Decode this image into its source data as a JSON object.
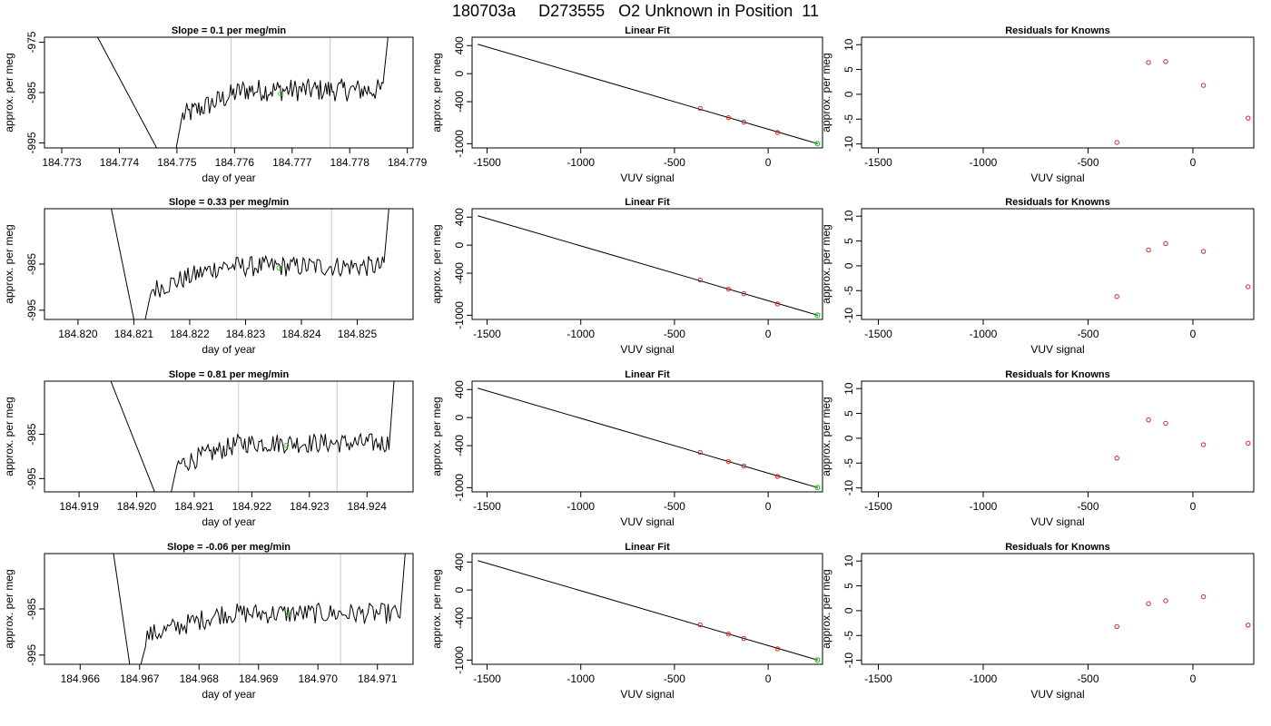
{
  "header": {
    "title": "180703a     D273555   O2 Unknown in Position  11"
  },
  "colors": {
    "trace": "#000000",
    "known_point": "#d62728",
    "unknown_point": "#22cc22",
    "marker_line": "#c8c8c8",
    "fit_line": "#000000"
  },
  "chart_data": [
    {
      "type": "line",
      "title": "Slope =  0.1  per meg/min",
      "xlabel": "day of year",
      "ylabel": "approx. per meg",
      "xlim": [
        184.7727,
        184.7791
      ],
      "ylim": [
        -996,
        -974
      ],
      "x_ticks": [
        "184.773",
        "184.774",
        "184.775",
        "184.776",
        "184.777",
        "184.778",
        "184.779"
      ],
      "y_ticks": [
        "-975",
        "-985",
        "-995"
      ],
      "markers_x": [
        184.77594,
        184.77766
      ],
      "trace_start": 184.77358,
      "rise_start": 184.7751,
      "trace_end": 184.77858,
      "level": -984.5,
      "unknown_point": [
        184.7768,
        -985.2
      ]
    },
    {
      "type": "scatter",
      "title": "Linear Fit",
      "xlabel": "VUV signal",
      "ylabel": "approx. per meg",
      "xlim": [
        -1580,
        290
      ],
      "ylim": [
        -1060,
        520
      ],
      "x_ticks": [
        "-1500",
        "-1000",
        "-500",
        "0"
      ],
      "y_ticks": [
        "400",
        "0",
        "-400",
        "-1000"
      ],
      "fit_line": [
        [
          -1550,
          420
        ],
        [
          265,
          -1000
        ]
      ],
      "known_points": [
        [
          -363,
          -497
        ],
        [
          -212,
          -628
        ],
        [
          -130,
          -692
        ],
        [
          50,
          -839
        ]
      ],
      "unknown_point": [
        263,
        -999
      ]
    },
    {
      "type": "scatter",
      "title": "Residuals for Knowns",
      "xlabel": "VUV signal",
      "ylabel": "approx. per meg",
      "xlim": [
        -1580,
        290
      ],
      "ylim": [
        -10.8,
        11.5
      ],
      "x_ticks": [
        "-1500",
        "-1000",
        "-500",
        "0"
      ],
      "y_ticks": [
        "10",
        "5",
        "0",
        "-5",
        "-10"
      ],
      "points": [
        [
          -363,
          -9.7
        ],
        [
          -212,
          6.4
        ],
        [
          -130,
          6.6
        ],
        [
          50,
          1.8
        ],
        [
          263,
          -4.8
        ]
      ]
    },
    {
      "type": "line",
      "title": "Slope =  0.33  per meg/min",
      "xlabel": "day of year",
      "ylabel": "approx. per meg",
      "xlim": [
        184.8194,
        184.826
      ],
      "ylim": [
        -997,
        -973
      ],
      "x_ticks": [
        "184.820",
        "184.821",
        "184.822",
        "184.823",
        "184.824",
        "184.825"
      ],
      "y_ticks": [
        "-985",
        "-995"
      ],
      "markers_x": [
        184.82284,
        184.82454
      ],
      "trace_start": 184.82058,
      "rise_start": 184.8213,
      "trace_end": 184.82548,
      "level": -985.5,
      "unknown_point": [
        184.8236,
        -985.8
      ]
    },
    {
      "type": "scatter",
      "title": "Linear Fit",
      "xlabel": "VUV signal",
      "ylabel": "approx. per meg",
      "xlim": [
        -1580,
        290
      ],
      "ylim": [
        -1060,
        520
      ],
      "x_ticks": [
        "-1500",
        "-1000",
        "-500",
        "0"
      ],
      "y_ticks": [
        "400",
        "0",
        "-400",
        "-1000"
      ],
      "fit_line": [
        [
          -1550,
          420
        ],
        [
          265,
          -1000
        ]
      ],
      "known_points": [
        [
          -363,
          -497
        ],
        [
          -212,
          -628
        ],
        [
          -130,
          -692
        ],
        [
          50,
          -839
        ]
      ],
      "unknown_point": [
        263,
        -999
      ]
    },
    {
      "type": "scatter",
      "title": "Residuals for Knowns",
      "xlabel": "VUV signal",
      "ylabel": "approx. per meg",
      "xlim": [
        -1580,
        290
      ],
      "ylim": [
        -10.8,
        11.5
      ],
      "x_ticks": [
        "-1500",
        "-1000",
        "-500",
        "0"
      ],
      "y_ticks": [
        "10",
        "5",
        "0",
        "-5",
        "-10"
      ],
      "points": [
        [
          -363,
          -6.2
        ],
        [
          -212,
          3.2
        ],
        [
          -130,
          4.5
        ],
        [
          50,
          2.9
        ],
        [
          263,
          -4.2
        ]
      ]
    },
    {
      "type": "line",
      "title": "Slope =  0.81  per meg/min",
      "xlabel": "day of year",
      "ylabel": "approx. per meg",
      "xlim": [
        184.9184,
        184.9248
      ],
      "ylim": [
        -998,
        -973
      ],
      "x_ticks": [
        "184.919",
        "184.920",
        "184.921",
        "184.922",
        "184.923",
        "184.924"
      ],
      "y_ticks": [
        "-985",
        "-995"
      ],
      "markers_x": [
        184.92177,
        184.92348
      ],
      "trace_start": 184.91952,
      "rise_start": 184.9207,
      "trace_end": 184.92438,
      "level": -987.0,
      "unknown_point": [
        184.9226,
        -987.5
      ]
    },
    {
      "type": "scatter",
      "title": "Linear Fit",
      "xlabel": "VUV signal",
      "ylabel": "approx. per meg",
      "xlim": [
        -1580,
        290
      ],
      "ylim": [
        -1060,
        520
      ],
      "x_ticks": [
        "-1500",
        "-1000",
        "-500",
        "0"
      ],
      "y_ticks": [
        "400",
        "0",
        "-400",
        "-1000"
      ],
      "fit_line": [
        [
          -1550,
          420
        ],
        [
          265,
          -1000
        ]
      ],
      "known_points": [
        [
          -363,
          -497
        ],
        [
          -212,
          -628
        ],
        [
          -130,
          -692
        ],
        [
          50,
          -839
        ]
      ],
      "unknown_point": [
        263,
        -999
      ]
    },
    {
      "type": "scatter",
      "title": "Residuals for Knowns",
      "xlabel": "VUV signal",
      "ylabel": "approx. per meg",
      "xlim": [
        -1580,
        290
      ],
      "ylim": [
        -10.8,
        11.5
      ],
      "points": [
        [
          -363,
          -4.0
        ],
        [
          -212,
          3.7
        ],
        [
          -130,
          3.0
        ],
        [
          50,
          -1.3
        ],
        [
          263,
          -1.0
        ]
      ],
      "x_ticks": [
        "-1500",
        "-1000",
        "-500",
        "0"
      ],
      "y_ticks": [
        "10",
        "5",
        "0",
        "-5",
        "-10"
      ]
    },
    {
      "type": "line",
      "title": "Slope =  -0.06  per meg/min",
      "xlabel": "day of year",
      "ylabel": "approx. per meg",
      "xlim": [
        184.9654,
        184.9716
      ],
      "ylim": [
        -997,
        -973
      ],
      "x_ticks": [
        "184.966",
        "184.967",
        "184.968",
        "184.969",
        "184.970",
        "184.971"
      ],
      "y_ticks": [
        "-985",
        "-995"
      ],
      "markers_x": [
        184.96868,
        184.97038
      ],
      "trace_start": 184.96655,
      "rise_start": 184.9671,
      "trace_end": 184.97138,
      "level": -986.0,
      "unknown_point": [
        184.9695,
        -986.2
      ]
    },
    {
      "type": "scatter",
      "title": "Linear Fit",
      "xlabel": "VUV signal",
      "ylabel": "approx. per meg",
      "xlim": [
        -1580,
        290
      ],
      "ylim": [
        -1060,
        520
      ],
      "x_ticks": [
        "-1500",
        "-1000",
        "-500",
        "0"
      ],
      "y_ticks": [
        "400",
        "0",
        "-400",
        "-1000"
      ],
      "fit_line": [
        [
          -1550,
          420
        ],
        [
          265,
          -1000
        ]
      ],
      "known_points": [
        [
          -363,
          -497
        ],
        [
          -212,
          -628
        ],
        [
          -130,
          -692
        ],
        [
          50,
          -839
        ]
      ],
      "unknown_point": [
        263,
        -999
      ]
    },
    {
      "type": "scatter",
      "title": "Residuals for Knowns",
      "xlabel": "VUV signal",
      "ylabel": "approx. per meg",
      "xlim": [
        -1580,
        290
      ],
      "ylim": [
        -10.8,
        11.5
      ],
      "x_ticks": [
        "-1500",
        "-1000",
        "-500",
        "0"
      ],
      "y_ticks": [
        "10",
        "5",
        "0",
        "-5",
        "-10"
      ],
      "points": [
        [
          -363,
          -3.2
        ],
        [
          -212,
          1.4
        ],
        [
          -130,
          2.0
        ],
        [
          50,
          2.8
        ],
        [
          263,
          -2.9
        ]
      ]
    }
  ]
}
